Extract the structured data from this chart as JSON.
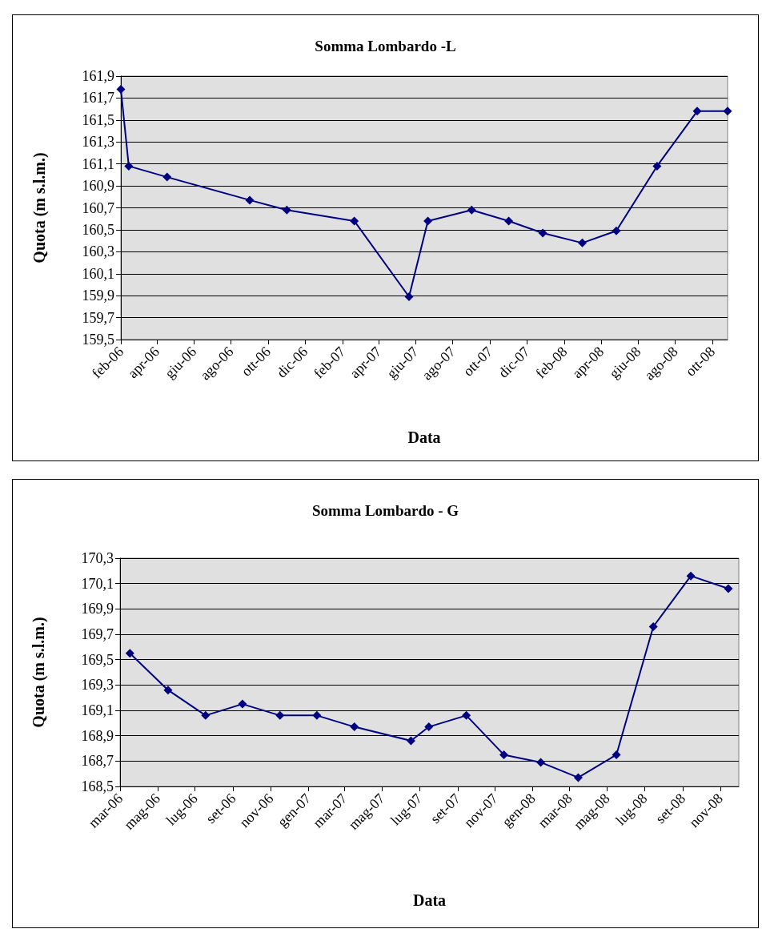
{
  "chart_data": [
    {
      "type": "line",
      "title": "Somma Lombardo -L",
      "xlabel": "Data",
      "ylabel": "Quota (m s.l.m.)",
      "marker": "diamond",
      "line_style": "solid",
      "grid": "y",
      "xlim": [
        "2006-02-01",
        "2008-10-26"
      ],
      "xticks": [
        {
          "value": "2006-02",
          "label": "feb-06"
        },
        {
          "value": "2006-04",
          "label": "apr-06"
        },
        {
          "value": "2006-06",
          "label": "giu-06"
        },
        {
          "value": "2006-08",
          "label": "ago-06"
        },
        {
          "value": "2006-10",
          "label": "ott-06"
        },
        {
          "value": "2006-12",
          "label": "dic-06"
        },
        {
          "value": "2007-02",
          "label": "feb-07"
        },
        {
          "value": "2007-04",
          "label": "apr-07"
        },
        {
          "value": "2007-06",
          "label": "giu-07"
        },
        {
          "value": "2007-08",
          "label": "ago-07"
        },
        {
          "value": "2007-10",
          "label": "ott-07"
        },
        {
          "value": "2007-12",
          "label": "dic-07"
        },
        {
          "value": "2008-02",
          "label": "feb-08"
        },
        {
          "value": "2008-04",
          "label": "apr-08"
        },
        {
          "value": "2008-06",
          "label": "giu-08"
        },
        {
          "value": "2008-08",
          "label": "ago-08"
        },
        {
          "value": "2008-10",
          "label": "ott-08"
        }
      ],
      "ylim": [
        159.5,
        161.9
      ],
      "yticks": [
        {
          "value": 159.5,
          "label": "159,5"
        },
        {
          "value": 159.7,
          "label": "159,7"
        },
        {
          "value": 159.9,
          "label": "159,9"
        },
        {
          "value": 160.1,
          "label": "160,1"
        },
        {
          "value": 160.3,
          "label": "160,3"
        },
        {
          "value": 160.5,
          "label": "160,5"
        },
        {
          "value": 160.7,
          "label": "160,7"
        },
        {
          "value": 160.9,
          "label": "160,9"
        },
        {
          "value": 161.1,
          "label": "161,1"
        },
        {
          "value": 161.3,
          "label": "161,3"
        },
        {
          "value": 161.5,
          "label": "161,5"
        },
        {
          "value": 161.7,
          "label": "161,7"
        },
        {
          "value": 161.9,
          "label": "161,9"
        }
      ],
      "x": [
        "2006-02-01",
        "2006-02-14",
        "2006-04-18",
        "2006-09-01",
        "2006-11-01",
        "2007-02-20",
        "2007-05-21",
        "2007-06-21",
        "2007-09-01",
        "2007-11-01",
        "2007-12-27",
        "2008-03-01",
        "2008-04-26",
        "2008-07-02",
        "2008-09-06",
        "2008-10-26"
      ],
      "series": [
        {
          "color": "#000080",
          "values": [
            161.78,
            161.08,
            160.98,
            160.77,
            160.68,
            160.58,
            159.89,
            160.58,
            160.68,
            160.58,
            160.47,
            160.38,
            160.49,
            161.08,
            161.58,
            161.58
          ]
        }
      ]
    },
    {
      "type": "line",
      "title": "Somma Lombardo - G",
      "xlabel": "Data",
      "ylabel": "Quota (m s.l.m.)",
      "marker": "diamond",
      "line_style": "solid",
      "grid": "y",
      "xlim": [
        "2006-03-01",
        "2008-12-01"
      ],
      "xticks": [
        {
          "value": "2006-03",
          "label": "mar-06"
        },
        {
          "value": "2006-05",
          "label": "mag-06"
        },
        {
          "value": "2006-07",
          "label": "lug-06"
        },
        {
          "value": "2006-09",
          "label": "set-06"
        },
        {
          "value": "2006-11",
          "label": "nov-06"
        },
        {
          "value": "2007-01",
          "label": "gen-07"
        },
        {
          "value": "2007-03",
          "label": "mar-07"
        },
        {
          "value": "2007-05",
          "label": "mag-07"
        },
        {
          "value": "2007-07",
          "label": "lug-07"
        },
        {
          "value": "2007-09",
          "label": "set-07"
        },
        {
          "value": "2007-11",
          "label": "nov-07"
        },
        {
          "value": "2008-01",
          "label": "gen-08"
        },
        {
          "value": "2008-03",
          "label": "mar-08"
        },
        {
          "value": "2008-05",
          "label": "mag-08"
        },
        {
          "value": "2008-07",
          "label": "lug-08"
        },
        {
          "value": "2008-09",
          "label": "set-08"
        },
        {
          "value": "2008-11",
          "label": "nov-08"
        }
      ],
      "ylim": [
        168.5,
        170.3
      ],
      "yticks": [
        {
          "value": 168.5,
          "label": "168,5"
        },
        {
          "value": 168.7,
          "label": "168,7"
        },
        {
          "value": 168.9,
          "label": "168,9"
        },
        {
          "value": 169.1,
          "label": "169,1"
        },
        {
          "value": 169.3,
          "label": "169,3"
        },
        {
          "value": 169.5,
          "label": "169,5"
        },
        {
          "value": 169.7,
          "label": "169,7"
        },
        {
          "value": 169.9,
          "label": "169,9"
        },
        {
          "value": 170.1,
          "label": "170,1"
        },
        {
          "value": 170.3,
          "label": "170,3"
        }
      ],
      "x": [
        "2006-03-17",
        "2006-05-18",
        "2006-07-18",
        "2006-09-16",
        "2006-11-16",
        "2007-01-15",
        "2007-03-17",
        "2007-06-17",
        "2007-07-16",
        "2007-09-15",
        "2007-11-15",
        "2008-01-14",
        "2008-03-15",
        "2008-05-16",
        "2008-07-15",
        "2008-09-14",
        "2008-11-14"
      ],
      "series": [
        {
          "color": "#000080",
          "values": [
            169.55,
            169.26,
            169.06,
            169.15,
            169.06,
            169.06,
            168.97,
            168.86,
            168.97,
            169.06,
            168.75,
            168.69,
            168.57,
            168.75,
            169.76,
            170.16,
            170.06
          ]
        }
      ]
    }
  ]
}
